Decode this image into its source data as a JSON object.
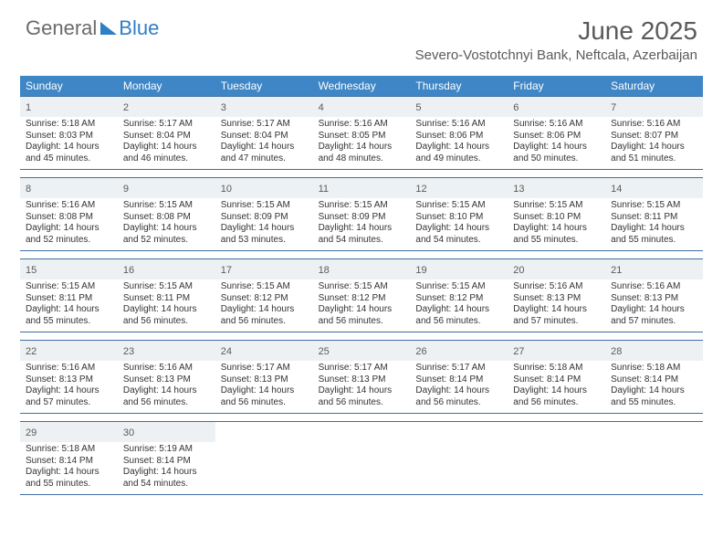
{
  "logo": {
    "part1": "General",
    "part2": "Blue"
  },
  "title": {
    "month": "June 2025",
    "location": "Severo-Vostotchnyi Bank, Neftcala, Azerbaijan"
  },
  "colors": {
    "header_bg": "#3e86c6",
    "header_text": "#ffffff",
    "rule": "#3e6fa3",
    "daynum_bg": "#eef1f3",
    "text": "#333333",
    "brand_blue": "#2f7fc3",
    "brand_gray": "#6a6a6a"
  },
  "days_of_week": [
    "Sunday",
    "Monday",
    "Tuesday",
    "Wednesday",
    "Thursday",
    "Friday",
    "Saturday"
  ],
  "weeks": [
    [
      {
        "n": "1",
        "sunrise": "5:18 AM",
        "sunset": "8:03 PM",
        "dh": "14",
        "dm": "45"
      },
      {
        "n": "2",
        "sunrise": "5:17 AM",
        "sunset": "8:04 PM",
        "dh": "14",
        "dm": "46"
      },
      {
        "n": "3",
        "sunrise": "5:17 AM",
        "sunset": "8:04 PM",
        "dh": "14",
        "dm": "47"
      },
      {
        "n": "4",
        "sunrise": "5:16 AM",
        "sunset": "8:05 PM",
        "dh": "14",
        "dm": "48"
      },
      {
        "n": "5",
        "sunrise": "5:16 AM",
        "sunset": "8:06 PM",
        "dh": "14",
        "dm": "49"
      },
      {
        "n": "6",
        "sunrise": "5:16 AM",
        "sunset": "8:06 PM",
        "dh": "14",
        "dm": "50"
      },
      {
        "n": "7",
        "sunrise": "5:16 AM",
        "sunset": "8:07 PM",
        "dh": "14",
        "dm": "51"
      }
    ],
    [
      {
        "n": "8",
        "sunrise": "5:16 AM",
        "sunset": "8:08 PM",
        "dh": "14",
        "dm": "52"
      },
      {
        "n": "9",
        "sunrise": "5:15 AM",
        "sunset": "8:08 PM",
        "dh": "14",
        "dm": "52"
      },
      {
        "n": "10",
        "sunrise": "5:15 AM",
        "sunset": "8:09 PM",
        "dh": "14",
        "dm": "53"
      },
      {
        "n": "11",
        "sunrise": "5:15 AM",
        "sunset": "8:09 PM",
        "dh": "14",
        "dm": "54"
      },
      {
        "n": "12",
        "sunrise": "5:15 AM",
        "sunset": "8:10 PM",
        "dh": "14",
        "dm": "54"
      },
      {
        "n": "13",
        "sunrise": "5:15 AM",
        "sunset": "8:10 PM",
        "dh": "14",
        "dm": "55"
      },
      {
        "n": "14",
        "sunrise": "5:15 AM",
        "sunset": "8:11 PM",
        "dh": "14",
        "dm": "55"
      }
    ],
    [
      {
        "n": "15",
        "sunrise": "5:15 AM",
        "sunset": "8:11 PM",
        "dh": "14",
        "dm": "55"
      },
      {
        "n": "16",
        "sunrise": "5:15 AM",
        "sunset": "8:11 PM",
        "dh": "14",
        "dm": "56"
      },
      {
        "n": "17",
        "sunrise": "5:15 AM",
        "sunset": "8:12 PM",
        "dh": "14",
        "dm": "56"
      },
      {
        "n": "18",
        "sunrise": "5:15 AM",
        "sunset": "8:12 PM",
        "dh": "14",
        "dm": "56"
      },
      {
        "n": "19",
        "sunrise": "5:15 AM",
        "sunset": "8:12 PM",
        "dh": "14",
        "dm": "56"
      },
      {
        "n": "20",
        "sunrise": "5:16 AM",
        "sunset": "8:13 PM",
        "dh": "14",
        "dm": "57"
      },
      {
        "n": "21",
        "sunrise": "5:16 AM",
        "sunset": "8:13 PM",
        "dh": "14",
        "dm": "57"
      }
    ],
    [
      {
        "n": "22",
        "sunrise": "5:16 AM",
        "sunset": "8:13 PM",
        "dh": "14",
        "dm": "57"
      },
      {
        "n": "23",
        "sunrise": "5:16 AM",
        "sunset": "8:13 PM",
        "dh": "14",
        "dm": "56"
      },
      {
        "n": "24",
        "sunrise": "5:17 AM",
        "sunset": "8:13 PM",
        "dh": "14",
        "dm": "56"
      },
      {
        "n": "25",
        "sunrise": "5:17 AM",
        "sunset": "8:13 PM",
        "dh": "14",
        "dm": "56"
      },
      {
        "n": "26",
        "sunrise": "5:17 AM",
        "sunset": "8:14 PM",
        "dh": "14",
        "dm": "56"
      },
      {
        "n": "27",
        "sunrise": "5:18 AM",
        "sunset": "8:14 PM",
        "dh": "14",
        "dm": "56"
      },
      {
        "n": "28",
        "sunrise": "5:18 AM",
        "sunset": "8:14 PM",
        "dh": "14",
        "dm": "55"
      }
    ],
    [
      {
        "n": "29",
        "sunrise": "5:18 AM",
        "sunset": "8:14 PM",
        "dh": "14",
        "dm": "55"
      },
      {
        "n": "30",
        "sunrise": "5:19 AM",
        "sunset": "8:14 PM",
        "dh": "14",
        "dm": "54"
      },
      null,
      null,
      null,
      null,
      null
    ]
  ]
}
